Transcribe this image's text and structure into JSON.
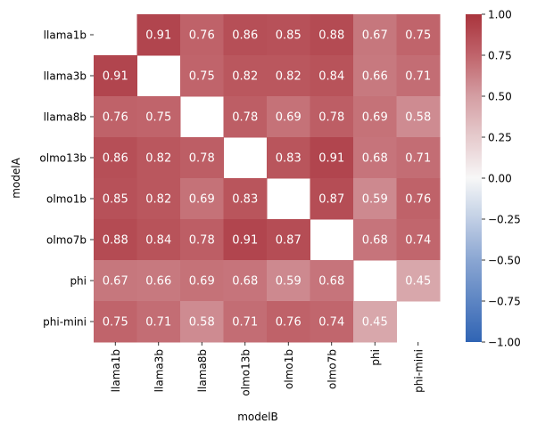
{
  "chart_data": {
    "type": "heatmap",
    "title": "",
    "xlabel": "modelB",
    "ylabel": "modelA",
    "x_categories": [
      "llama1b",
      "llama3b",
      "llama8b",
      "olmo13b",
      "olmo1b",
      "olmo7b",
      "phi",
      "phi-mini"
    ],
    "y_categories": [
      "llama1b",
      "llama3b",
      "llama8b",
      "olmo13b",
      "olmo1b",
      "olmo7b",
      "phi",
      "phi-mini"
    ],
    "values": [
      [
        null,
        0.91,
        0.76,
        0.86,
        0.85,
        0.88,
        0.67,
        0.75
      ],
      [
        0.91,
        null,
        0.75,
        0.82,
        0.82,
        0.84,
        0.66,
        0.71
      ],
      [
        0.76,
        0.75,
        null,
        0.78,
        0.69,
        0.78,
        0.69,
        0.58
      ],
      [
        0.86,
        0.82,
        0.78,
        null,
        0.83,
        0.91,
        0.68,
        0.71
      ],
      [
        0.85,
        0.82,
        0.69,
        0.83,
        null,
        0.87,
        0.59,
        0.76
      ],
      [
        0.88,
        0.84,
        0.78,
        0.91,
        0.87,
        null,
        0.68,
        0.74
      ],
      [
        0.67,
        0.66,
        0.69,
        0.68,
        0.59,
        0.68,
        null,
        0.45
      ],
      [
        0.75,
        0.71,
        0.58,
        0.71,
        0.76,
        0.74,
        0.45,
        null
      ]
    ],
    "vmin": -1.0,
    "vmax": 1.0,
    "colormap": "vlag",
    "colorbar_ticks": [
      1.0,
      0.75,
      0.5,
      0.25,
      0.0,
      -0.25,
      -0.5,
      -0.75,
      -1.0
    ],
    "colorbar_tick_labels": [
      "1.00",
      "0.75",
      "0.50",
      "0.25",
      "0.00",
      "−0.25",
      "−0.50",
      "−0.75",
      "−1.00"
    ],
    "colormap_stops": [
      {
        "value": -1.0,
        "color": "#3064b4"
      },
      {
        "value": -0.5,
        "color": "#8aa6d2"
      },
      {
        "value": 0.0,
        "color": "#f7f7f7"
      },
      {
        "value": 0.5,
        "color": "#d49ea3"
      },
      {
        "value": 0.75,
        "color": "#c0646b"
      },
      {
        "value": 1.0,
        "color": "#a9343d"
      }
    ],
    "annotation_text_color": "#ffffff"
  }
}
